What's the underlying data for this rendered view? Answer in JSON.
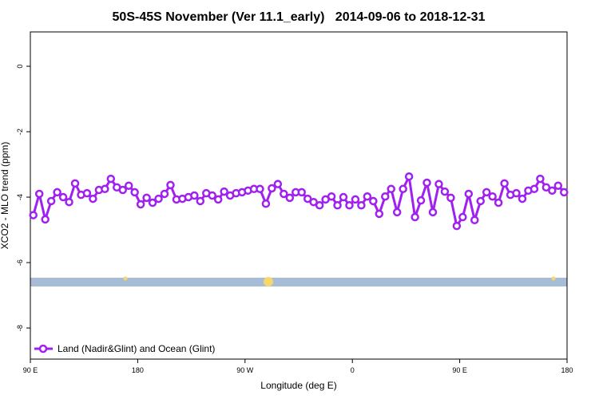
{
  "chart_data": {
    "type": "line",
    "title": "50S-45S November (Ver 11.1_early)   2014-09-06 to 2018-12-31",
    "xlabel": "Longitude (deg E)",
    "ylabel": "XCO2 - MLO trend (ppm)",
    "xlim": [
      90,
      540
    ],
    "xticks": [
      {
        "value": 90,
        "label": "90 E"
      },
      {
        "value": 180,
        "label": "180"
      },
      {
        "value": 270,
        "label": "90 W"
      },
      {
        "value": 360,
        "label": "0"
      },
      {
        "value": 450,
        "label": "90 E"
      },
      {
        "value": 540,
        "label": "180"
      }
    ],
    "ylim": [
      -8.95,
      1.05
    ],
    "yticks": [
      0,
      -2,
      -4,
      -6,
      -8
    ],
    "legend": "bottom-left",
    "x": [
      92.5,
      97.5,
      102.5,
      107.5,
      112.5,
      117.5,
      122.5,
      127.5,
      132.5,
      137.5,
      142.5,
      147.5,
      152.5,
      157.5,
      162.5,
      167.5,
      172.5,
      177.5,
      182.5,
      187.5,
      192.5,
      197.5,
      202.5,
      207.5,
      212.5,
      217.5,
      222.5,
      227.5,
      232.5,
      237.5,
      242.5,
      247.5,
      252.5,
      257.5,
      262.5,
      267.5,
      272.5,
      277.5,
      282.5,
      287.5,
      292.5,
      297.5,
      302.5,
      307.5,
      312.5,
      317.5,
      322.5,
      327.5,
      332.5,
      337.5,
      342.5,
      347.5,
      352.5,
      357.5,
      362.5,
      367.5,
      372.5,
      377.5,
      382.5,
      387.5,
      392.5,
      397.5,
      402.5,
      407.5,
      412.5,
      417.5,
      422.5,
      427.5,
      432.5,
      437.5,
      442.5,
      447.5,
      452.5,
      457.5,
      462.5,
      467.5,
      472.5,
      477.5,
      482.5,
      487.5,
      492.5,
      497.5,
      502.5,
      507.5,
      512.5,
      517.5,
      522.5,
      527.5,
      532.5,
      537.5
    ],
    "series": [
      {
        "name": "Land (Nadir&Glint) and Ocean (Glint)",
        "color": "#a020f0",
        "values": [
          -4.55,
          -3.9,
          -4.68,
          -4.12,
          -3.85,
          -4.0,
          -4.15,
          -3.58,
          -3.93,
          -3.88,
          -4.05,
          -3.78,
          -3.75,
          -3.44,
          -3.7,
          -3.78,
          -3.65,
          -3.85,
          -4.22,
          -4.02,
          -4.17,
          -4.05,
          -3.9,
          -3.63,
          -4.07,
          -4.05,
          -4.0,
          -3.95,
          -4.12,
          -3.88,
          -3.95,
          -4.07,
          -3.83,
          -3.95,
          -3.88,
          -3.85,
          -3.8,
          -3.75,
          -3.75,
          -4.2,
          -3.73,
          -3.6,
          -3.9,
          -4.02,
          -3.85,
          -3.85,
          -4.05,
          -4.15,
          -4.25,
          -4.07,
          -3.98,
          -4.25,
          -4.0,
          -4.25,
          -4.07,
          -4.25,
          -3.98,
          -4.12,
          -4.51,
          -3.98,
          -3.75,
          -4.46,
          -3.75,
          -3.37,
          -4.61,
          -4.1,
          -3.56,
          -4.46,
          -3.6,
          -3.83,
          -4.02,
          -4.88,
          -4.61,
          -3.9,
          -4.7,
          -4.12,
          -3.85,
          -3.98,
          -4.17,
          -3.58,
          -3.93,
          -3.88,
          -4.05,
          -3.8,
          -3.75,
          -3.44,
          -3.7,
          -3.8,
          -3.65,
          -3.85
        ]
      }
    ]
  }
}
